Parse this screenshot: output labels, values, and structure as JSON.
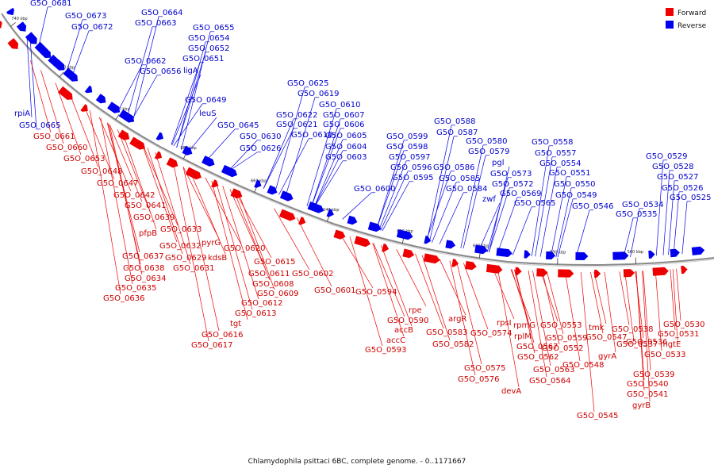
{
  "title": "Chlamydophila psittaci 6BC, complete genome. - 0..1171667",
  "legend": [
    {
      "label": "Forward",
      "color": "#ee0000"
    },
    {
      "label": "Reverse",
      "color": "#0000ee"
    }
  ],
  "colors": {
    "forward": "#ee0000",
    "reverse": "#0000ee",
    "backbone": "#888888",
    "leader": "#333333"
  },
  "ticks": [
    "740 kbp",
    "720 kbp",
    "700 kbp",
    "680 kbp",
    "660 kbp",
    "640 kbp",
    "620 kbp",
    "600 kbp",
    "580 kbp",
    "560 kbp"
  ],
  "reverse_labels": [
    "G5O_0681",
    "G5O_0673",
    "G5O_0672",
    "G5O_0664",
    "G5O_0663",
    "G5O_0655",
    "G5O_0654",
    "G5O_0652",
    "G5O_0651",
    "G5O_0662",
    "G5O_0656",
    "ligA",
    "rpiA",
    "G5O_0665",
    "G5O_0649",
    "leuS",
    "G5O_0645",
    "G5O_0625",
    "G5O_0619",
    "G5O_0610",
    "G5O_0622",
    "G5O_0607",
    "G5O_0621",
    "G5O_0606",
    "G5O_0630",
    "G5O_0618",
    "G5O_0605",
    "G5O_0626",
    "G5O_0604",
    "G5O_0603",
    "G5O_0588",
    "G5O_0599",
    "G5O_0587",
    "G5O_0580",
    "G5O_0598",
    "G5O_0579",
    "G5O_0597",
    "pgl",
    "G5O_0596",
    "G5O_0586",
    "G5O_0573",
    "G5O_0595",
    "G5O_0585",
    "G5O_0572",
    "G5O_0600",
    "G5O_0584",
    "zwf",
    "G5O_0569",
    "G5O_0565",
    "G5O_0558",
    "G5O_0557",
    "G5O_0554",
    "G5O_0551",
    "G5O_0550",
    "G5O_0549",
    "G5O_0546",
    "G5O_0534",
    "G5O_0535",
    "G5O_0529",
    "G5O_0528",
    "G5O_0527",
    "G5O_0526",
    "G5O_0525"
  ],
  "forward_labels": [
    "G5O_0661",
    "G5O_0660",
    "G5O_0653",
    "G5O_0648",
    "G5O_0647",
    "G5O_0642",
    "G5O_0641",
    "G5O_0639",
    "pfpB",
    "G5O_0633",
    "G5O_0632",
    "pyrG",
    "G5O_0620",
    "G5O_0637",
    "G5O_0629",
    "kdsB",
    "G5O_0638",
    "G5O_0631",
    "G5O_0634",
    "G5O_0635",
    "G5O_0636",
    "G5O_0615",
    "G5O_0611",
    "G5O_0608",
    "G5O_0609",
    "G5O_0612",
    "G5O_0613",
    "tgt",
    "G5O_0616",
    "G5O_0617",
    "G5O_0602",
    "G5O_0601",
    "G5O_0594",
    "rpe",
    "G5O_0590",
    "accB",
    "accC",
    "G5O_0593",
    "argR",
    "G5O_0583",
    "G5O_0582",
    "rpsI",
    "G5O_0574",
    "rpmG",
    "rplM",
    "G5O_0567",
    "G5O_0559",
    "G5O_0562",
    "G5O_0575",
    "G5O_0563",
    "G5O_0576",
    "G5O_0564",
    "devA",
    "G5O_0553",
    "G5O_0552",
    "G5O_0548",
    "tmk",
    "G5O_0547",
    "G5O_0538",
    "G5O_0537",
    "gyrA",
    "G5O_0536",
    "G5O_0539",
    "G5O_0540",
    "G5O_0541",
    "gyrB",
    "G5O_0545",
    "G5O_0530",
    "G5O_0531",
    "mgtE",
    "G5O_0533"
  ]
}
